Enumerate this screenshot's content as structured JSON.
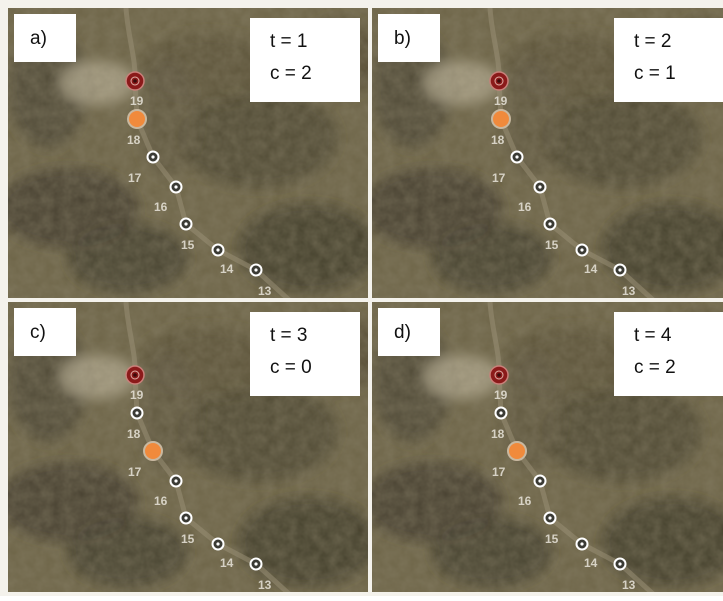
{
  "panels": [
    {
      "label": "a)",
      "t": "t = 1",
      "c": "c = 2",
      "marker_colors": [
        "#8b1a1a",
        "#f08a3c",
        "#ffffff",
        "#ffffff",
        "#ffffff",
        "#ffffff",
        "#ffffff"
      ]
    },
    {
      "label": "b)",
      "t": "t = 2",
      "c": "c = 1",
      "marker_colors": [
        "#8b1a1a",
        "#f08a3c",
        "#ffffff",
        "#ffffff",
        "#ffffff",
        "#ffffff",
        "#ffffff"
      ]
    },
    {
      "label": "c)",
      "t": "t = 3",
      "c": "c = 0",
      "marker_colors": [
        "#8b1a1a",
        "#ffffff",
        "#f08a3c",
        "#ffffff",
        "#ffffff",
        "#ffffff",
        "#ffffff"
      ]
    },
    {
      "label": "d)",
      "t": "t = 4",
      "c": "c = 2",
      "marker_colors": [
        "#8b1a1a",
        "#ffffff",
        "#f08a3c",
        "#ffffff",
        "#ffffff",
        "#ffffff",
        "#ffffff"
      ]
    }
  ],
  "node_labels": [
    "19",
    "18",
    "17",
    "16",
    "15",
    "14",
    "13"
  ]
}
